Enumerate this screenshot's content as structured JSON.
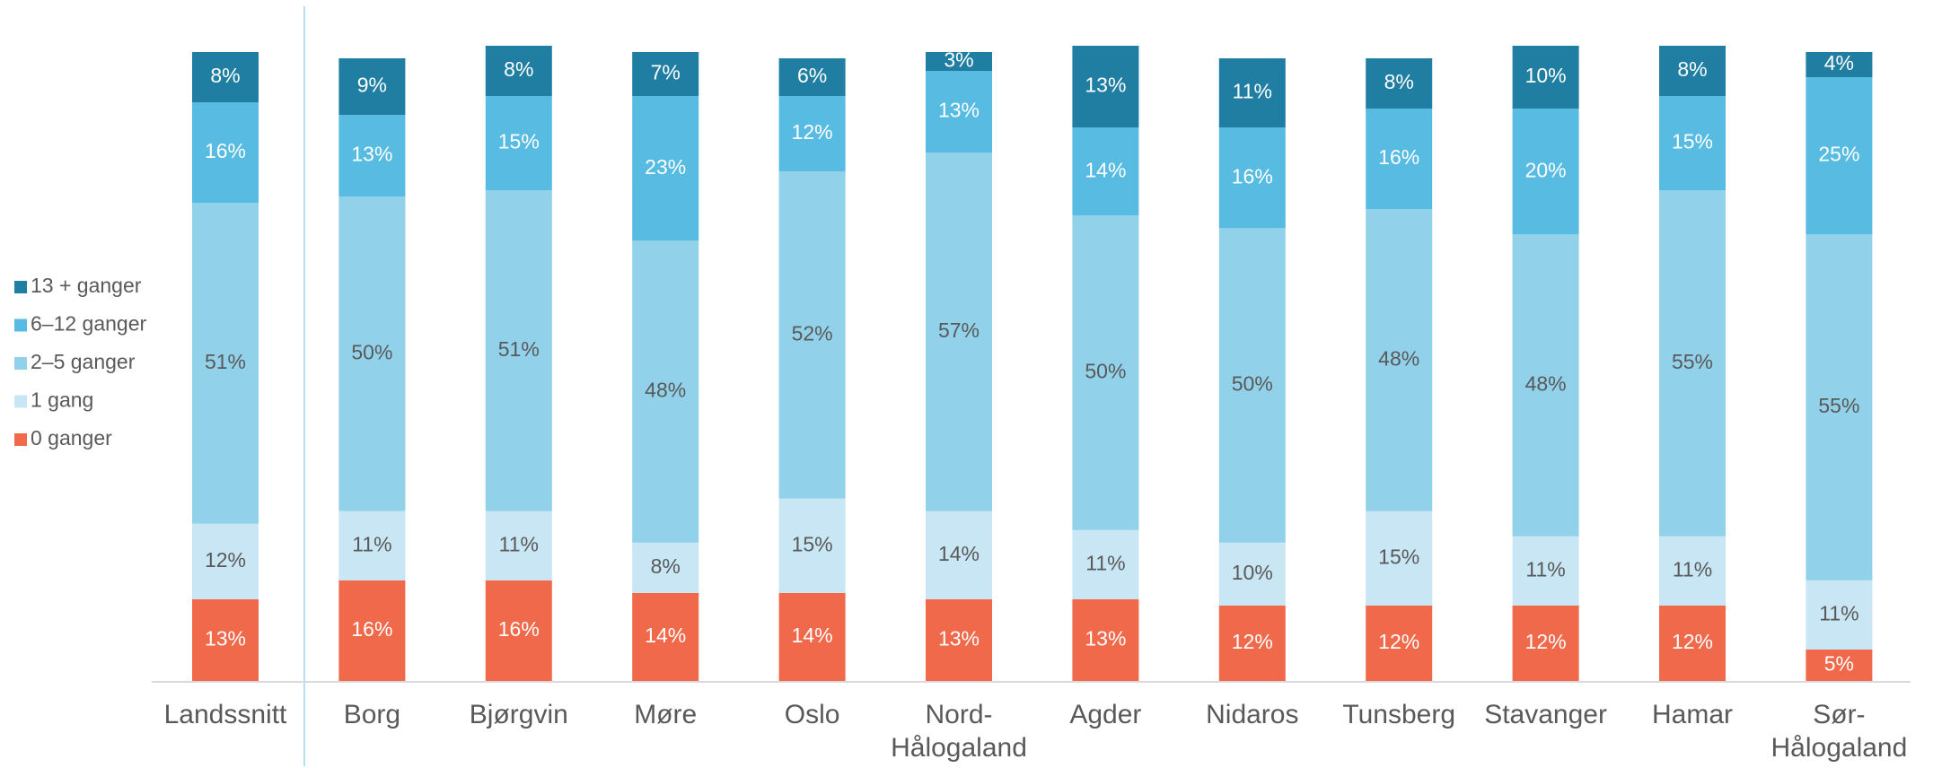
{
  "chart_data": {
    "type": "stacked_bar",
    "categories": [
      "Landssnitt",
      "Borg",
      "Bjørgvin",
      "Møre",
      "Oslo",
      "Nord-\nHålogaland",
      "Agder",
      "Nidaros",
      "Tunsberg",
      "Stavanger",
      "Hamar",
      "Sør-\nHålogaland"
    ],
    "ylim": [
      0,
      100
    ],
    "legend": "left",
    "series": [
      {
        "name": "0 ganger",
        "color": "#f0694b",
        "values": [
          13,
          16,
          16,
          14,
          14,
          13,
          13,
          12,
          12,
          12,
          12,
          5
        ],
        "value_labels": [
          "13%",
          "16%",
          "16%",
          "14%",
          "14%",
          "13%",
          "13%",
          "12%",
          "12%",
          "12%",
          "12%",
          "5%"
        ]
      },
      {
        "name": "1 gang",
        "color": "#c8e6f3",
        "values": [
          12,
          11,
          11,
          8,
          15,
          14,
          11,
          10,
          15,
          11,
          11,
          11
        ],
        "value_labels": [
          "12%",
          "11%",
          "11%",
          "8%",
          "15%",
          "14%",
          "11%",
          "10%",
          "15%",
          "11%",
          "11%",
          "11%"
        ]
      },
      {
        "name": "2–5 ganger",
        "color": "#92d1ea",
        "values": [
          51,
          50,
          51,
          48,
          52,
          57,
          50,
          50,
          48,
          48,
          55,
          55
        ],
        "value_labels": [
          "51%",
          "50%",
          "51%",
          "48%",
          "52%",
          "57%",
          "50%",
          "50%",
          "48%",
          "48%",
          "55%",
          "55%"
        ]
      },
      {
        "name": "6–12 ganger",
        "color": "#57bbe2",
        "values": [
          16,
          13,
          15,
          23,
          12,
          13,
          14,
          16,
          16,
          20,
          15,
          25
        ],
        "value_labels": [
          "16%",
          "13%",
          "15%",
          "23%",
          "12%",
          "13%",
          "14%",
          "16%",
          "16%",
          "20%",
          "15%",
          "25%"
        ]
      },
      {
        "name": "13 + ganger",
        "color": "#1f7ea1",
        "values": [
          8,
          9,
          8,
          7,
          6,
          3,
          13,
          11,
          8,
          10,
          8,
          4
        ],
        "value_labels": [
          "8%",
          "9%",
          "8%",
          "7%",
          "6%",
          "3%",
          "13%",
          "11%",
          "8%",
          "10%",
          "8%",
          "4%"
        ]
      }
    ]
  }
}
